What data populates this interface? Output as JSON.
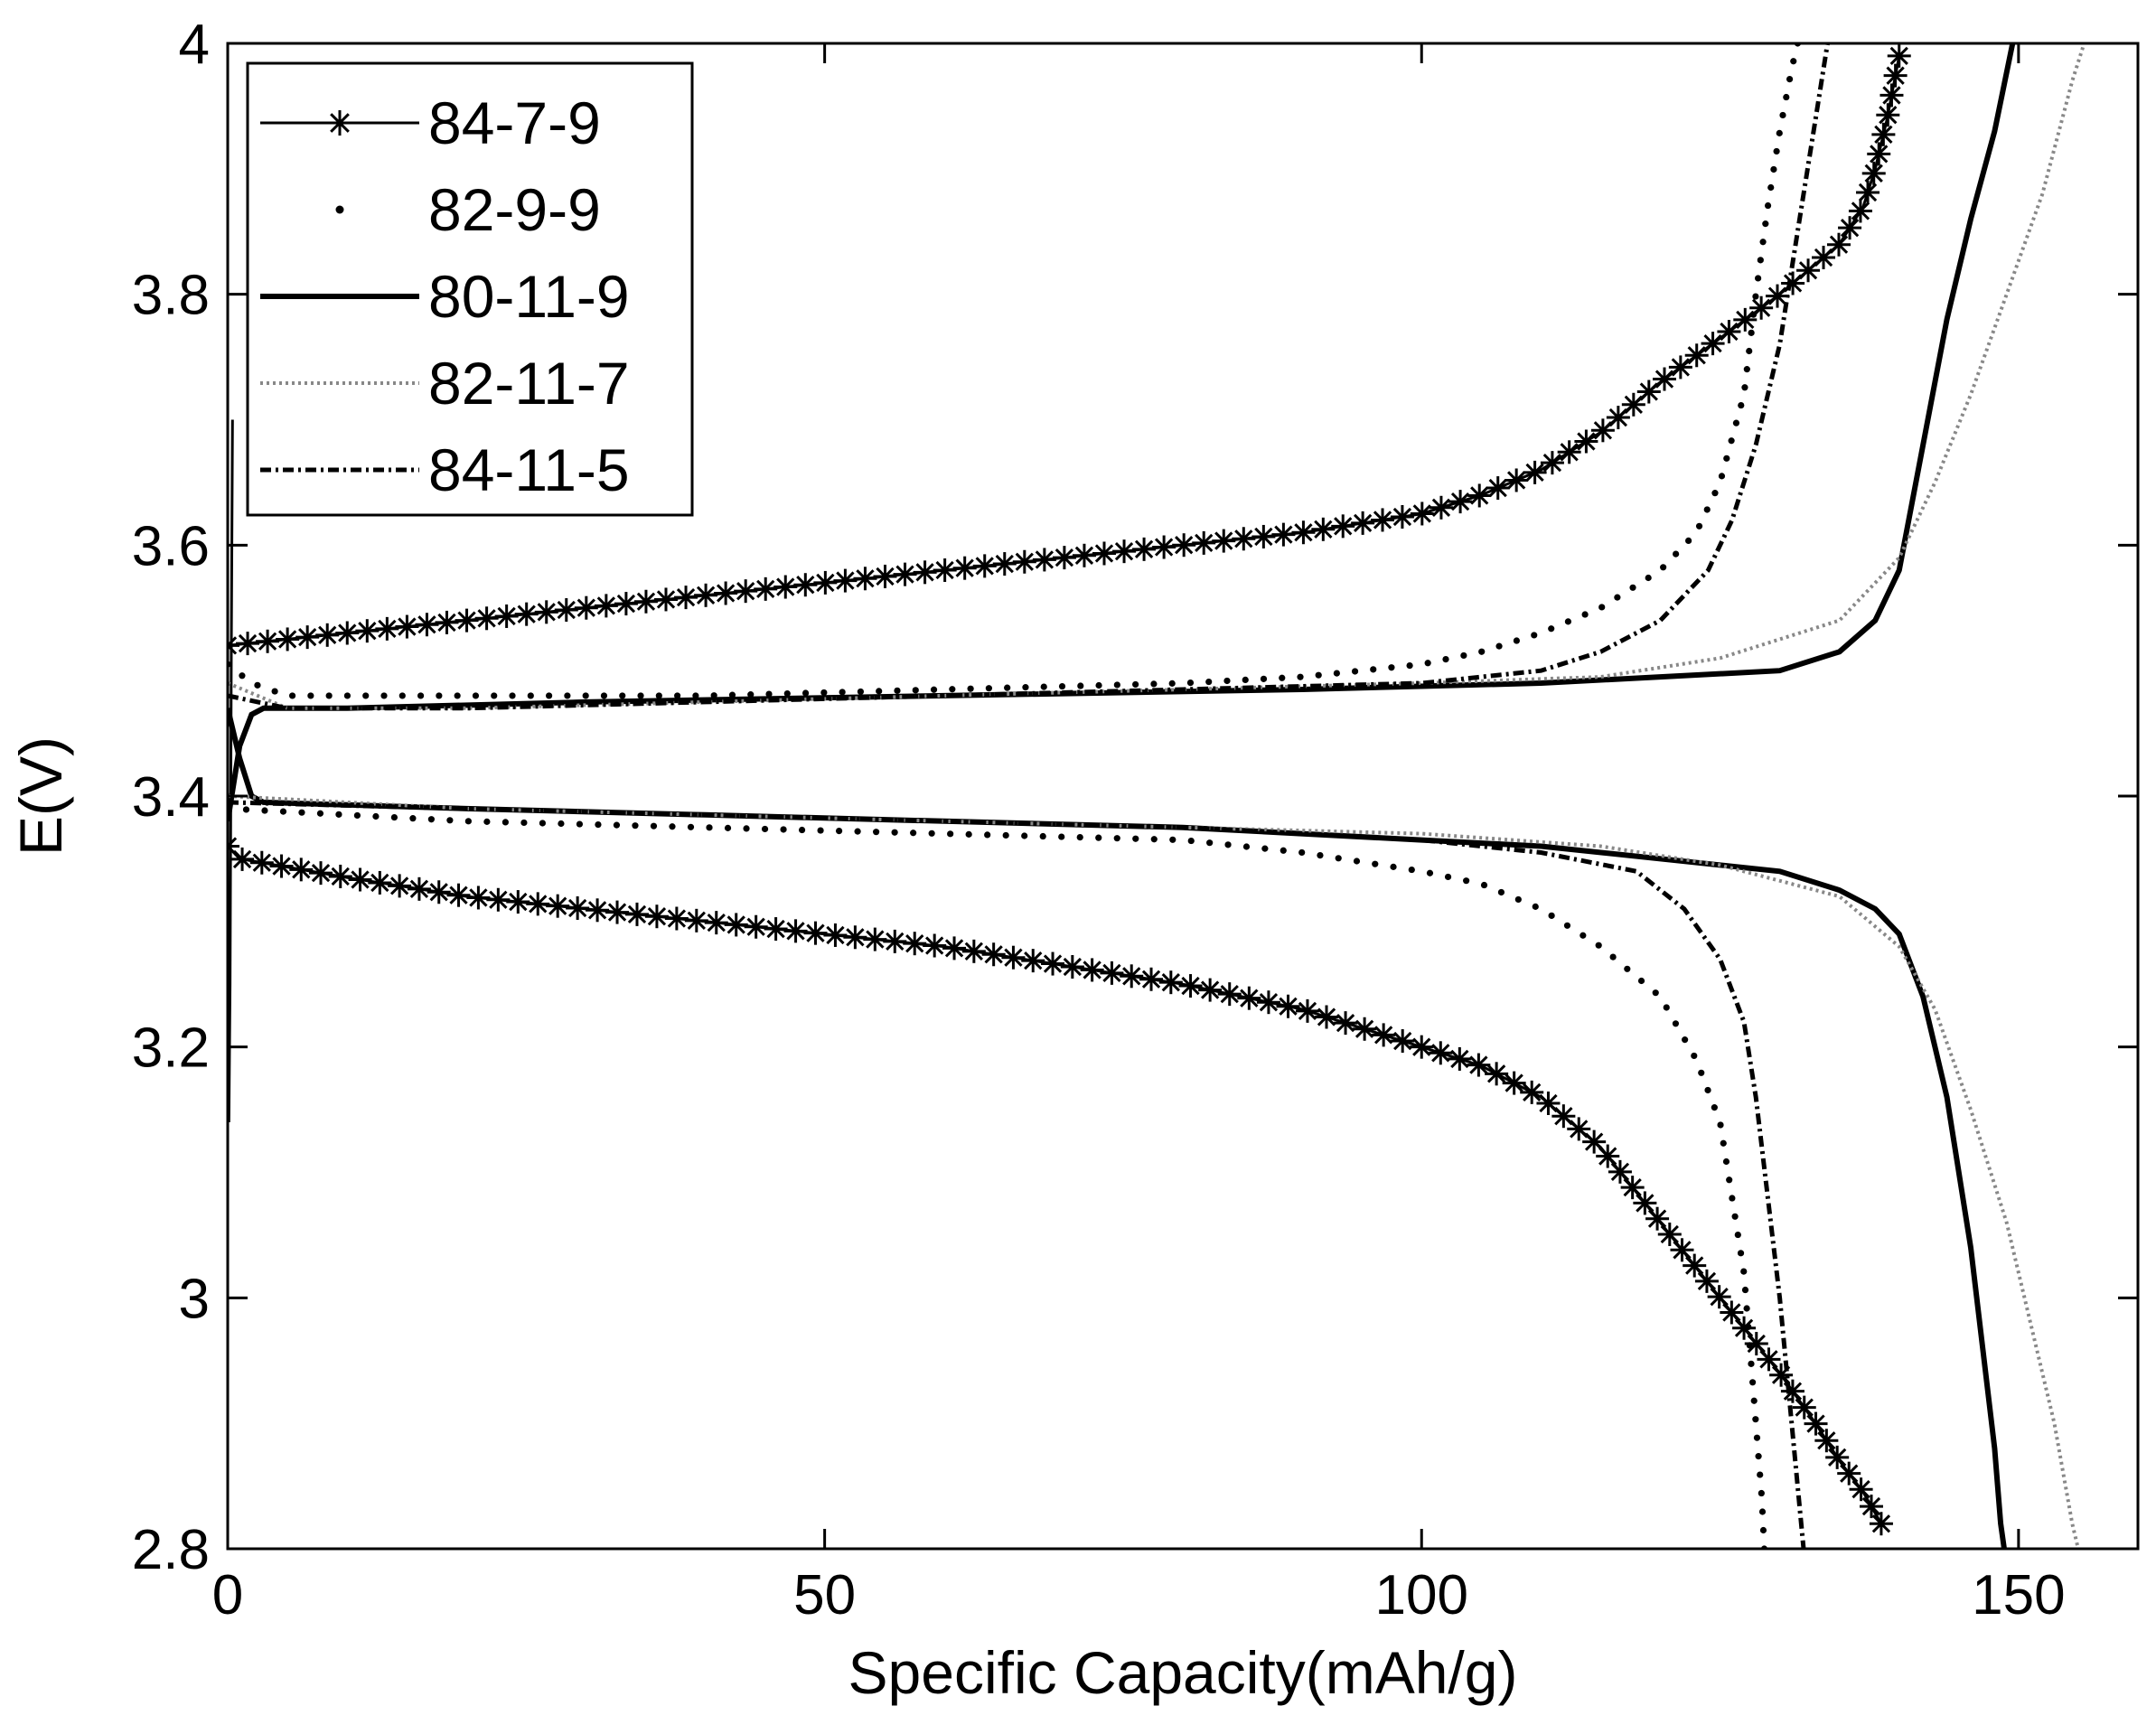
{
  "chart_data": {
    "type": "line",
    "title": "",
    "xlabel": "Specific Capacity(mAh/g)",
    "ylabel": "E(V)",
    "xlim": [
      0,
      160
    ],
    "ylim": [
      2.8,
      4.0
    ],
    "xticks": [
      0,
      50,
      100,
      150
    ],
    "xtick_labels": [
      "0",
      "50",
      "100",
      "150"
    ],
    "yticks": [
      2.8,
      3.0,
      3.2,
      3.4,
      3.6,
      3.8,
      4.0
    ],
    "ytick_labels": [
      "2.8",
      "3",
      "3.2",
      "3.4",
      "3.6",
      "3.8",
      "4"
    ],
    "grid": false,
    "legend_position": "top-left",
    "series": [
      {
        "name": "84-7-9",
        "style": "solid-star",
        "charge": [
          [
            0,
            3.52
          ],
          [
            10,
            3.53
          ],
          [
            20,
            3.54
          ],
          [
            30,
            3.55
          ],
          [
            40,
            3.56
          ],
          [
            50,
            3.57
          ],
          [
            60,
            3.58
          ],
          [
            70,
            3.59
          ],
          [
            80,
            3.6
          ],
          [
            90,
            3.61
          ],
          [
            100,
            3.625
          ],
          [
            105,
            3.64
          ],
          [
            110,
            3.66
          ],
          [
            115,
            3.69
          ],
          [
            120,
            3.73
          ],
          [
            125,
            3.765
          ],
          [
            130,
            3.8
          ],
          [
            135,
            3.84
          ],
          [
            137,
            3.87
          ],
          [
            138,
            3.9
          ],
          [
            139,
            3.94
          ],
          [
            140,
            3.99
          ]
        ],
        "discharge": [
          [
            0,
            3.36
          ],
          [
            1,
            3.35
          ],
          [
            10,
            3.335
          ],
          [
            20,
            3.32
          ],
          [
            30,
            3.31
          ],
          [
            40,
            3.3
          ],
          [
            50,
            3.29
          ],
          [
            60,
            3.28
          ],
          [
            70,
            3.265
          ],
          [
            80,
            3.25
          ],
          [
            90,
            3.23
          ],
          [
            100,
            3.2
          ],
          [
            105,
            3.185
          ],
          [
            110,
            3.16
          ],
          [
            115,
            3.12
          ],
          [
            120,
            3.06
          ],
          [
            125,
            3.0
          ],
          [
            130,
            2.94
          ],
          [
            133,
            2.9
          ],
          [
            135,
            2.87
          ],
          [
            137,
            2.845
          ],
          [
            138.5,
            2.82
          ]
        ]
      },
      {
        "name": "82-9-9",
        "style": "dots",
        "charge": [
          [
            0,
            3.505
          ],
          [
            2,
            3.49
          ],
          [
            5,
            3.48
          ],
          [
            20,
            3.48
          ],
          [
            40,
            3.48
          ],
          [
            60,
            3.485
          ],
          [
            80,
            3.49
          ],
          [
            90,
            3.495
          ],
          [
            100,
            3.505
          ],
          [
            105,
            3.515
          ],
          [
            110,
            3.53
          ],
          [
            115,
            3.55
          ],
          [
            120,
            3.58
          ],
          [
            123,
            3.61
          ],
          [
            125,
            3.65
          ],
          [
            127,
            3.72
          ],
          [
            128,
            3.8
          ],
          [
            129,
            3.87
          ],
          [
            130,
            3.93
          ],
          [
            131,
            3.98
          ],
          [
            131.5,
            4.0
          ]
        ],
        "discharge": [
          [
            0,
            3.39
          ],
          [
            20,
            3.38
          ],
          [
            40,
            3.375
          ],
          [
            60,
            3.37
          ],
          [
            80,
            3.365
          ],
          [
            90,
            3.355
          ],
          [
            100,
            3.34
          ],
          [
            105,
            3.33
          ],
          [
            110,
            3.31
          ],
          [
            115,
            3.28
          ],
          [
            120,
            3.24
          ],
          [
            123,
            3.19
          ],
          [
            125,
            3.14
          ],
          [
            126,
            3.08
          ],
          [
            127,
            3.02
          ],
          [
            127.5,
            2.96
          ],
          [
            128,
            2.9
          ],
          [
            128.5,
            2.84
          ],
          [
            128.7,
            2.8
          ]
        ]
      },
      {
        "name": "80-11-9",
        "style": "solid-thick",
        "charge": [
          [
            0,
            3.38
          ],
          [
            1,
            3.44
          ],
          [
            2,
            3.465
          ],
          [
            3,
            3.47
          ],
          [
            10,
            3.47
          ],
          [
            30,
            3.475
          ],
          [
            60,
            3.48
          ],
          [
            90,
            3.485
          ],
          [
            110,
            3.49
          ],
          [
            120,
            3.495
          ],
          [
            130,
            3.5
          ],
          [
            135,
            3.515
          ],
          [
            138,
            3.54
          ],
          [
            140,
            3.58
          ],
          [
            142,
            3.68
          ],
          [
            144,
            3.78
          ],
          [
            146,
            3.86
          ],
          [
            148,
            3.93
          ],
          [
            149.5,
            4.0
          ]
        ],
        "discharge": [
          [
            0,
            3.47
          ],
          [
            1,
            3.43
          ],
          [
            2,
            3.4
          ],
          [
            3,
            3.395
          ],
          [
            20,
            3.39
          ],
          [
            40,
            3.385
          ],
          [
            60,
            3.38
          ],
          [
            80,
            3.375
          ],
          [
            100,
            3.365
          ],
          [
            110,
            3.36
          ],
          [
            120,
            3.35
          ],
          [
            130,
            3.34
          ],
          [
            135,
            3.325
          ],
          [
            138,
            3.31
          ],
          [
            140,
            3.29
          ],
          [
            142,
            3.24
          ],
          [
            144,
            3.16
          ],
          [
            146,
            3.04
          ],
          [
            147,
            2.96
          ],
          [
            148,
            2.88
          ],
          [
            148.5,
            2.82
          ],
          [
            148.8,
            2.8
          ]
        ]
      },
      {
        "name": "82-11-7",
        "style": "light-dotted",
        "charge": [
          [
            0,
            3.49
          ],
          [
            5,
            3.47
          ],
          [
            20,
            3.47
          ],
          [
            40,
            3.475
          ],
          [
            60,
            3.48
          ],
          [
            80,
            3.485
          ],
          [
            100,
            3.49
          ],
          [
            115,
            3.495
          ],
          [
            125,
            3.51
          ],
          [
            135,
            3.54
          ],
          [
            140,
            3.59
          ],
          [
            143,
            3.65
          ],
          [
            146,
            3.72
          ],
          [
            149,
            3.8
          ],
          [
            152,
            3.88
          ],
          [
            154.5,
            3.97
          ],
          [
            155.5,
            4.0
          ]
        ],
        "discharge": [
          [
            0,
            3.4
          ],
          [
            20,
            3.39
          ],
          [
            40,
            3.385
          ],
          [
            60,
            3.38
          ],
          [
            80,
            3.375
          ],
          [
            100,
            3.37
          ],
          [
            115,
            3.36
          ],
          [
            125,
            3.345
          ],
          [
            135,
            3.32
          ],
          [
            140,
            3.28
          ],
          [
            143,
            3.23
          ],
          [
            146,
            3.15
          ],
          [
            149,
            3.06
          ],
          [
            151,
            2.98
          ],
          [
            153,
            2.9
          ],
          [
            154.5,
            2.82
          ],
          [
            155,
            2.8
          ]
        ]
      },
      {
        "name": "84-11-5",
        "style": "dash-dot",
        "charge": [
          [
            0,
            3.48
          ],
          [
            5,
            3.47
          ],
          [
            20,
            3.47
          ],
          [
            40,
            3.475
          ],
          [
            60,
            3.48
          ],
          [
            80,
            3.485
          ],
          [
            100,
            3.49
          ],
          [
            110,
            3.5
          ],
          [
            115,
            3.515
          ],
          [
            120,
            3.54
          ],
          [
            124,
            3.58
          ],
          [
            126,
            3.62
          ],
          [
            128,
            3.68
          ],
          [
            130,
            3.76
          ],
          [
            131,
            3.82
          ],
          [
            132,
            3.88
          ],
          [
            133,
            3.94
          ],
          [
            134,
            4.0
          ]
        ],
        "discharge": [
          [
            0,
            3.395
          ],
          [
            20,
            3.39
          ],
          [
            40,
            3.385
          ],
          [
            60,
            3.38
          ],
          [
            80,
            3.375
          ],
          [
            100,
            3.365
          ],
          [
            110,
            3.355
          ],
          [
            118,
            3.34
          ],
          [
            122,
            3.31
          ],
          [
            125,
            3.27
          ],
          [
            127,
            3.22
          ],
          [
            128,
            3.16
          ],
          [
            129,
            3.08
          ],
          [
            130,
            3.0
          ],
          [
            131,
            2.9
          ],
          [
            132,
            2.8
          ]
        ]
      }
    ],
    "initial_spike": [
      [
        0.1,
        3.14
      ],
      [
        0.2,
        3.25
      ],
      [
        0.3,
        3.52
      ],
      [
        0.4,
        3.7
      ]
    ]
  }
}
